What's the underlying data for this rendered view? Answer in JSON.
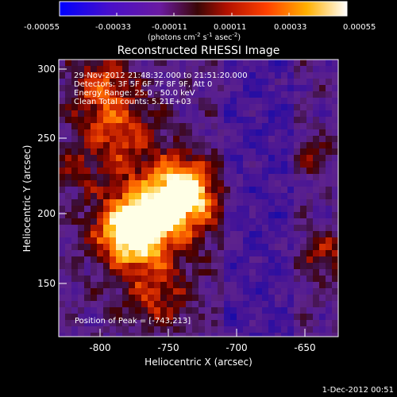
{
  "colorbar": {
    "ticks": [
      "-0.00055",
      "-0.00033",
      "-0.00011",
      "0.00011",
      "0.00033",
      "0.00055"
    ],
    "unit_label": "(photons cm",
    "unit_exp1": "-2",
    "unit_mid": " s",
    "unit_exp2": "-1",
    "unit_mid2": " asec",
    "unit_exp3": "-2",
    "unit_end": ")"
  },
  "title": "Reconstructed RHESSI Image",
  "info": {
    "line1": "29-Nov-2012 21:48:32.000 to 21:51:20.000",
    "line2": "Detectors: 3F 5F 6F 7F 8F 9F, Att 0",
    "line3": "Energy Range: 25.0 - 50.0 keV",
    "line4": "Clean    Total counts: 5.21E+03",
    "peak": "Position of Peak = [-743,213]"
  },
  "axes": {
    "xlabel": "Heliocentric X (arcsec)",
    "ylabel": "Heliocentric Y (arcsec)",
    "xticks": [
      "-800",
      "-750",
      "-700",
      "-650"
    ],
    "yticks": [
      "300",
      "250",
      "200",
      "150"
    ]
  },
  "footer": {
    "date": "1-Dec-2012 00:51"
  }
}
